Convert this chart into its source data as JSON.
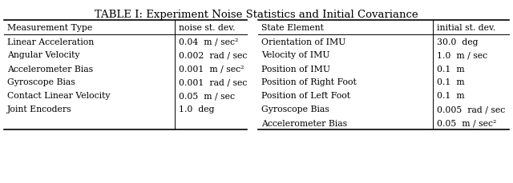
{
  "title": "TABLE I: Experiment Noise Statistics and Initial Covariance",
  "left_headers": [
    "Measurement Type",
    "noise st. dev."
  ],
  "right_headers": [
    "State Element",
    "initial st. dev."
  ],
  "left_rows": [
    [
      "Linear Acceleration",
      "0.04  m / sec²"
    ],
    [
      "Angular Velocity",
      "0.002  rad / sec"
    ],
    [
      "Accelerometer Bias",
      "0.001  m / sec²"
    ],
    [
      "Gyroscope Bias",
      "0.001  rad / sec"
    ],
    [
      "Contact Linear Velocity",
      "0.05  m / sec"
    ],
    [
      "Joint Encoders",
      "1.0  deg"
    ]
  ],
  "right_rows": [
    [
      "Orientation of IMU",
      "30.0  deg"
    ],
    [
      "Velocity of IMU",
      "1.0  m / sec"
    ],
    [
      "Position of IMU",
      "0.1  m"
    ],
    [
      "Position of Right Foot",
      "0.1  m"
    ],
    [
      "Position of Left Foot",
      "0.1  m"
    ],
    [
      "Gyroscope Bias",
      "0.005  rad / sec"
    ],
    [
      "Accelerometer Bias",
      "0.05  m / sec²"
    ]
  ],
  "bg_color": "#ffffff",
  "text_color": "#000000",
  "line_color": "#000000",
  "font_size": 7.8,
  "header_font_size": 7.8,
  "title_font_size": 9.5
}
